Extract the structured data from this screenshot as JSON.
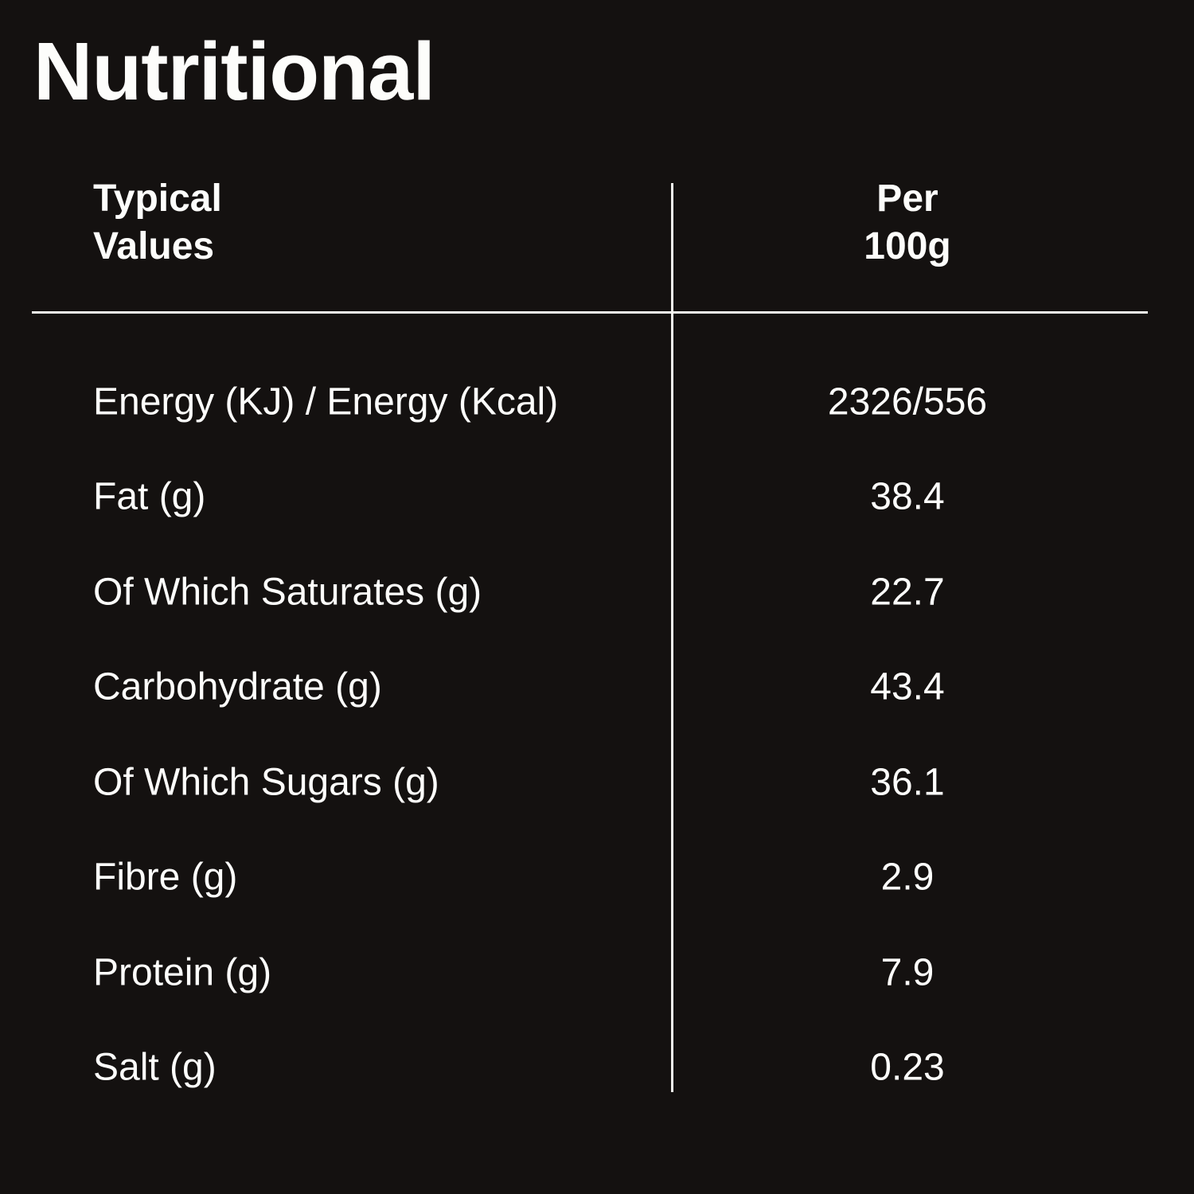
{
  "title": "Nutritional",
  "table": {
    "col1_header": "Typical\nValues",
    "col2_header": "Per\n100g",
    "rows": [
      {
        "label": "Energy (KJ) / Energy (Kcal)",
        "value": "2326/556"
      },
      {
        "label": "Fat (g)",
        "value": "38.4"
      },
      {
        "label": "Of Which Saturates (g)",
        "value": "22.7"
      },
      {
        "label": "Carbohydrate (g)",
        "value": "43.4"
      },
      {
        "label": "Of Which Sugars (g)",
        "value": "36.1"
      },
      {
        "label": "Fibre (g)",
        "value": "2.9"
      },
      {
        "label": "Protein (g)",
        "value": "7.9"
      },
      {
        "label": "Salt (g)",
        "value": "0.23"
      }
    ]
  },
  "colors": {
    "background": "#141110",
    "text": "#fdfdfb",
    "divider": "#f5f4f0"
  }
}
